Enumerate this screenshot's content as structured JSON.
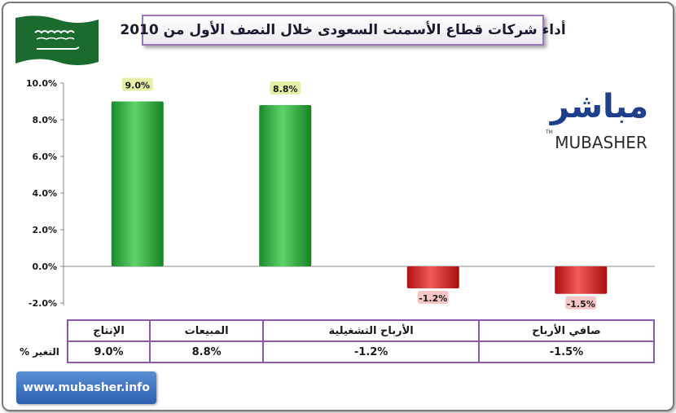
{
  "title": "أداء شركات قطاع الأسمنت السعودى خلال النصف الأول من 2010",
  "logo": {
    "arabic": "مباشر",
    "latin": "MUBASHER",
    "tm": "TM"
  },
  "button": {
    "label": "www.mubasher.info"
  },
  "table": {
    "row_label": "التغير %"
  },
  "colors": {
    "positive": "#22a034",
    "negative": "#d41c1c",
    "positive_label_bg": "#e6eea8",
    "negative_label_bg": "#f6c6c6",
    "table_border": "#8a5aa8"
  },
  "chart_data": {
    "type": "bar",
    "categories": [
      "الإنتاج",
      "المبيعات",
      "الأرباح التشغيلية",
      "صافي الأرباح"
    ],
    "values": [
      9.0,
      8.8,
      -1.2,
      -1.5
    ],
    "data_labels": [
      "9.0%",
      "8.8%",
      "-1.2%",
      "-1.5%"
    ],
    "yticks": [
      "10.0%",
      "8.0%",
      "6.0%",
      "4.0%",
      "2.0%",
      "0.0%",
      "-2.0%"
    ],
    "ytick_values": [
      10,
      8,
      6,
      4,
      2,
      0,
      -2
    ],
    "ylim": [
      -2,
      10
    ],
    "ylabel": "",
    "xlabel": "",
    "grid": false,
    "legend": "none"
  }
}
